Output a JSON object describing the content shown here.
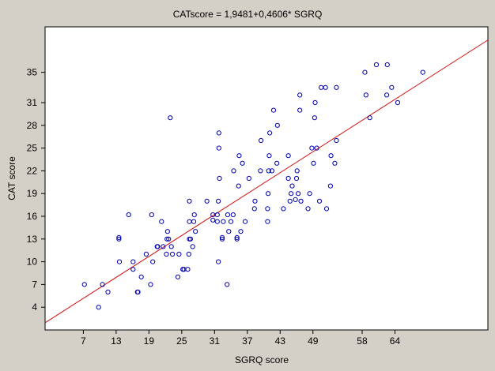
{
  "colors": {
    "background": "#d4d0c8",
    "plot_area": "#ffffff",
    "marker": "#0000b0",
    "fit_line": "#d01010",
    "axis": "#000000"
  },
  "chart_data": {
    "type": "scatter",
    "title": "CATscore = 1,9481+0,4606* SGRQ",
    "xlabel": "SGRQ score",
    "ylabel": "CAT score",
    "xlim": [
      0,
      81
    ],
    "ylim": [
      1,
      41
    ],
    "x_ticks": [
      7,
      13,
      19,
      25,
      31,
      37,
      43,
      49,
      58,
      64
    ],
    "y_ticks": [
      4,
      7,
      10,
      13,
      16,
      19,
      22,
      25,
      28,
      31,
      35
    ],
    "grid": false,
    "legend": "none",
    "marker": "open-circle",
    "fit_line": {
      "intercept": 1.9481,
      "slope": 0.4606
    },
    "points": [
      [
        7.2,
        7
      ],
      [
        9.8,
        4
      ],
      [
        10.5,
        7
      ],
      [
        11.5,
        6
      ],
      [
        13.5,
        13
      ],
      [
        13.5,
        13.2
      ],
      [
        13.6,
        10
      ],
      [
        15.3,
        16.2
      ],
      [
        16.1,
        9
      ],
      [
        16.1,
        10
      ],
      [
        16.9,
        6
      ],
      [
        17,
        6
      ],
      [
        17.6,
        8
      ],
      [
        18.5,
        11
      ],
      [
        19.3,
        7
      ],
      [
        19.5,
        16.2
      ],
      [
        19.7,
        10
      ],
      [
        20.5,
        12
      ],
      [
        20.6,
        12
      ],
      [
        21.3,
        15.3
      ],
      [
        21.6,
        12
      ],
      [
        22.2,
        11
      ],
      [
        22.3,
        13
      ],
      [
        22.4,
        14
      ],
      [
        22.6,
        13
      ],
      [
        22.9,
        29
      ],
      [
        23.1,
        12
      ],
      [
        23.3,
        11
      ],
      [
        24.3,
        8
      ],
      [
        24.5,
        11
      ],
      [
        25.2,
        9
      ],
      [
        25.4,
        9
      ],
      [
        26.1,
        9
      ],
      [
        26.3,
        11
      ],
      [
        26.4,
        13
      ],
      [
        26.4,
        15.3
      ],
      [
        26.4,
        18
      ],
      [
        26.6,
        13
      ],
      [
        27,
        12
      ],
      [
        27.2,
        15.3
      ],
      [
        27.3,
        16.2
      ],
      [
        27.5,
        14
      ],
      [
        29.6,
        18
      ],
      [
        30.7,
        16.2
      ],
      [
        30.7,
        15.5
      ],
      [
        31.5,
        16.2
      ],
      [
        31.5,
        15.3
      ],
      [
        31.7,
        10
      ],
      [
        31.7,
        18
      ],
      [
        31.8,
        25
      ],
      [
        31.8,
        27
      ],
      [
        31.9,
        21
      ],
      [
        32.4,
        13
      ],
      [
        32.4,
        13.2
      ],
      [
        32.6,
        15.3
      ],
      [
        33.3,
        7
      ],
      [
        33.4,
        16.2
      ],
      [
        33.6,
        14
      ],
      [
        34,
        15.3
      ],
      [
        34.4,
        16.2
      ],
      [
        34.5,
        22
      ],
      [
        35.1,
        13
      ],
      [
        35.1,
        13.2
      ],
      [
        35.4,
        20
      ],
      [
        35.5,
        24
      ],
      [
        35.8,
        14
      ],
      [
        36.1,
        23
      ],
      [
        36.6,
        15.3
      ],
      [
        37.3,
        21
      ],
      [
        38.3,
        17
      ],
      [
        38.4,
        18
      ],
      [
        39.4,
        22
      ],
      [
        39.5,
        26
      ],
      [
        40.7,
        15.3
      ],
      [
        40.7,
        17
      ],
      [
        40.8,
        19
      ],
      [
        40.9,
        22
      ],
      [
        41,
        24
      ],
      [
        41.1,
        27
      ],
      [
        41.5,
        22
      ],
      [
        41.8,
        30
      ],
      [
        42.4,
        23
      ],
      [
        42.5,
        28
      ],
      [
        43.6,
        17
      ],
      [
        44.5,
        21
      ],
      [
        44.5,
        24
      ],
      [
        44.8,
        18
      ],
      [
        45,
        19
      ],
      [
        45.2,
        20
      ],
      [
        45.8,
        18.2
      ],
      [
        46,
        21
      ],
      [
        46.1,
        22
      ],
      [
        46.3,
        19
      ],
      [
        46.6,
        30
      ],
      [
        46.6,
        32
      ],
      [
        46.8,
        18
      ],
      [
        48.1,
        17
      ],
      [
        48.4,
        19
      ],
      [
        48.8,
        25
      ],
      [
        49.1,
        23
      ],
      [
        49.3,
        29
      ],
      [
        49.4,
        31
      ],
      [
        49.7,
        25
      ],
      [
        50.2,
        18
      ],
      [
        50.5,
        33
      ],
      [
        51.3,
        33
      ],
      [
        51.5,
        17
      ],
      [
        52.2,
        20
      ],
      [
        52.3,
        24
      ],
      [
        53,
        23
      ],
      [
        53.3,
        33
      ],
      [
        53.3,
        26
      ],
      [
        58.5,
        35
      ],
      [
        58.7,
        32
      ],
      [
        59.4,
        29
      ],
      [
        60.6,
        36
      ],
      [
        62.5,
        32
      ],
      [
        62.6,
        36
      ],
      [
        63.4,
        33
      ],
      [
        64.5,
        31
      ],
      [
        69.1,
        35
      ]
    ]
  }
}
